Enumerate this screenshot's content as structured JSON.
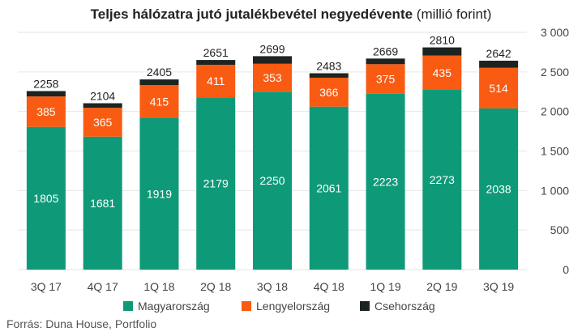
{
  "title": {
    "bold": "Teljes hálózatra jutó jutalékbevétel negyedévente",
    "unit": "(millió forint)"
  },
  "source": "Forrás: Duna House, Portfolio",
  "colors": {
    "magyarorszag": "#0e9a78",
    "lengyelorszag": "#f95b12",
    "csehorszag": "#1d2420",
    "grid": "#e6e6e6",
    "text": "#444444"
  },
  "chart_data": {
    "type": "bar",
    "stacked": true,
    "categories": [
      "3Q 17",
      "4Q 17",
      "1Q 18",
      "2Q 18",
      "3Q 18",
      "4Q 18",
      "1Q 19",
      "2Q 19",
      "3Q 19"
    ],
    "series": [
      {
        "name": "Magyarország",
        "values": [
          1805,
          1681,
          1919,
          2179,
          2250,
          2061,
          2223,
          2273,
          2038
        ]
      },
      {
        "name": "Lengyelország",
        "values": [
          385,
          365,
          415,
          411,
          353,
          366,
          375,
          435,
          514
        ]
      },
      {
        "name": "Csehország",
        "values": [
          68,
          58,
          71,
          61,
          96,
          56,
          71,
          102,
          90
        ]
      }
    ],
    "totals": [
      2258,
      2104,
      2405,
      2651,
      2699,
      2483,
      2669,
      2810,
      2642
    ],
    "ylim": [
      0,
      3000
    ],
    "yticks": [
      0,
      500,
      1000,
      1500,
      2000,
      2500,
      3000
    ],
    "ytick_labels": [
      "0",
      "500",
      "1 000",
      "1 500",
      "2 000",
      "2 500",
      "3 000"
    ],
    "y_axis_side": "right",
    "grid": true,
    "legend_position": "bottom"
  }
}
